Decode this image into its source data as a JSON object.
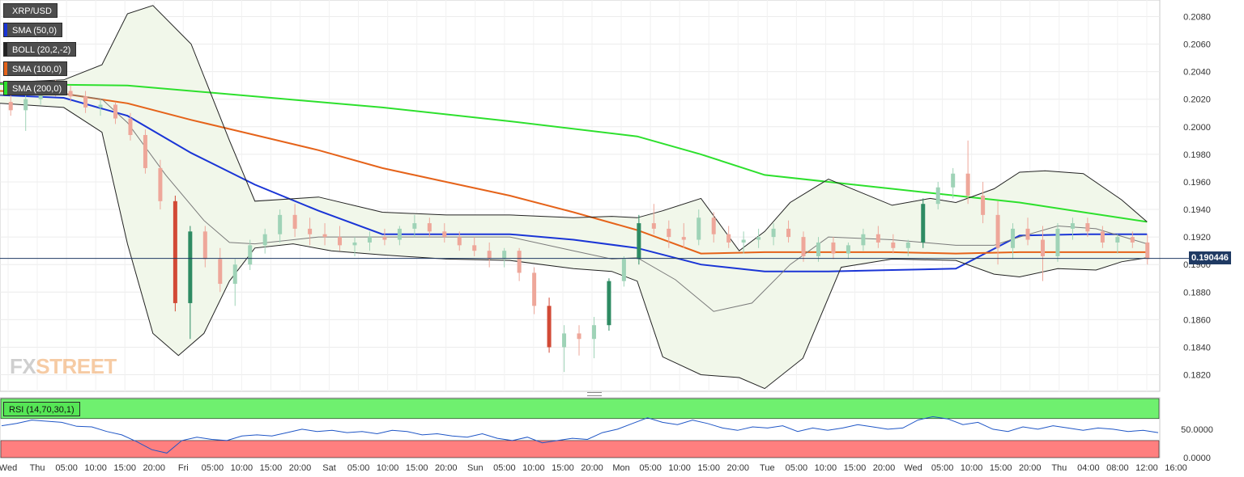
{
  "legend": [
    {
      "label": "XRP/USD",
      "color": "#4d4d4d"
    },
    {
      "label": "SMA (50,0)",
      "color": "#1a35d6"
    },
    {
      "label": "BOLL (20,2,-2)",
      "color": "#222222"
    },
    {
      "label": "SMA (100,0)",
      "color": "#e5631a"
    },
    {
      "label": "SMA (200,0)",
      "color": "#2de02d"
    }
  ],
  "current_price_label": "0.190446",
  "watermark": {
    "part1": "FX",
    "part2": "STREET"
  },
  "rsi_label": "RSI (14,70,30,1)",
  "colors": {
    "up": "#2e8b63",
    "up_light": "#9fd3b7",
    "down": "#d24a36",
    "down_light": "#eea79a",
    "rsi_line": "#1f56c6",
    "rsi_overbought": "#6ff06f",
    "rsi_oversold": "#ff7f7f"
  },
  "chart_data": [
    {
      "type": "candlestick",
      "title": "XRP/USD",
      "ylim": [
        0.1808,
        0.2092
      ],
      "y_ticks": [
        "0.2080",
        "0.2060",
        "0.2040",
        "0.2020",
        "0.2000",
        "0.1980",
        "0.1960",
        "0.1940",
        "0.1920",
        "0.1900",
        "0.1880",
        "0.1860",
        "0.1840",
        "0.1820"
      ],
      "x_labels": [
        "Wed",
        "Thu",
        "05:00",
        "10:00",
        "15:00",
        "20:00",
        "Fri",
        "05:00",
        "10:00",
        "15:00",
        "20:00",
        "Sat",
        "05:00",
        "10:00",
        "15:00",
        "20:00",
        "Sun",
        "05:00",
        "10:00",
        "15:00",
        "20:00",
        "Mon",
        "05:00",
        "10:00",
        "15:00",
        "20:00",
        "Tue",
        "05:00",
        "10:00",
        "15:00",
        "20:00",
        "Wed",
        "05:00",
        "10:00",
        "15:00",
        "20:00",
        "Thu",
        "04:00",
        "08:00",
        "12:00",
        "16:00"
      ],
      "current_price": 0.190446,
      "series": [
        {
          "name": "SMA (50,0)",
          "color": "#1a35d6",
          "x": [
            0,
            0.5,
            1,
            1.5,
            2,
            2.5,
            3,
            3.5,
            4,
            4.5,
            5,
            5.5,
            6,
            6.5,
            7,
            7.5,
            8,
            8.5,
            9
          ],
          "values": [
            0.2023,
            0.2021,
            0.2008,
            0.1981,
            0.1958,
            0.1939,
            0.1922,
            0.1922,
            0.1922,
            0.1918,
            0.1912,
            0.19,
            0.1895,
            0.1895,
            0.1896,
            0.1897,
            0.1921,
            0.1922,
            0.1922
          ]
        },
        {
          "name": "SMA (100,0)",
          "color": "#e5631a",
          "x": [
            0,
            0.5,
            1,
            1.5,
            2,
            2.5,
            3,
            3.5,
            4,
            4.5,
            5,
            5.5,
            6,
            6.5,
            7,
            7.5,
            8,
            8.5,
            9
          ],
          "values": [
            0.2026,
            0.2024,
            0.2017,
            0.2005,
            0.1994,
            0.1983,
            0.197,
            0.196,
            0.195,
            0.1938,
            0.1925,
            0.1908,
            0.1909,
            0.1909,
            0.1909,
            0.1908,
            0.1909,
            0.1909,
            0.1909
          ]
        },
        {
          "name": "SMA (200,0)",
          "color": "#2de02d",
          "x": [
            0,
            1,
            2,
            3,
            4,
            5,
            5.5,
            6,
            7,
            8,
            8.5,
            9
          ],
          "values": [
            0.2031,
            0.203,
            0.2022,
            0.2014,
            0.2004,
            0.1993,
            0.198,
            0.1965,
            0.1955,
            0.1945,
            0.1938,
            0.1931
          ]
        },
        {
          "name": "BOLL (20,2,-2)",
          "band": "upper",
          "color": "#222222",
          "x": [
            0,
            0.5,
            0.8,
            1.0,
            1.2,
            1.5,
            1.8,
            2.0,
            2.5,
            3.0,
            3.5,
            4.0,
            4.5,
            4.8,
            5.0,
            5.2,
            5.5,
            5.8,
            6.0,
            6.2,
            6.5,
            7.0,
            7.3,
            7.5,
            7.8,
            8.0,
            8.2,
            8.5,
            8.8,
            9.0
          ],
          "values": [
            0.2032,
            0.2034,
            0.2045,
            0.2082,
            0.2088,
            0.206,
            0.199,
            0.1946,
            0.1949,
            0.1938,
            0.1936,
            0.1936,
            0.1934,
            0.1935,
            0.1934,
            0.1939,
            0.1948,
            0.191,
            0.1924,
            0.1945,
            0.1962,
            0.1943,
            0.1948,
            0.1945,
            0.1955,
            0.1967,
            0.1968,
            0.1966,
            0.1947,
            0.1931
          ]
        },
        {
          "name": "BOLL (20,2,-2)",
          "band": "middle",
          "color": "#7a7a7a",
          "x": [
            0,
            0.5,
            0.8,
            1.0,
            1.3,
            1.6,
            1.8,
            2.0,
            2.5,
            3.0,
            3.5,
            4.0,
            4.5,
            4.8,
            5.0,
            5.3,
            5.6,
            5.9,
            6.2,
            6.5,
            7.0,
            7.5,
            7.8,
            8.0,
            8.3,
            8.6,
            9.0
          ],
          "values": [
            0.2023,
            0.2024,
            0.202,
            0.2003,
            0.1965,
            0.1932,
            0.1916,
            0.1915,
            0.192,
            0.192,
            0.192,
            0.192,
            0.191,
            0.1904,
            0.1905,
            0.1889,
            0.1866,
            0.1872,
            0.19,
            0.192,
            0.1918,
            0.1914,
            0.1914,
            0.192,
            0.1928,
            0.1926,
            0.1915
          ]
        },
        {
          "name": "BOLL (20,2,-2)",
          "band": "lower",
          "color": "#222222",
          "x": [
            0,
            0.5,
            0.8,
            1.0,
            1.2,
            1.4,
            1.6,
            1.8,
            2.0,
            2.3,
            2.6,
            3.0,
            3.5,
            4.0,
            4.5,
            4.8,
            5.0,
            5.2,
            5.5,
            5.8,
            6.0,
            6.3,
            6.6,
            7.0,
            7.5,
            7.8,
            8.0,
            8.3,
            8.6,
            8.8,
            9.0
          ],
          "values": [
            0.2017,
            0.2014,
            0.1996,
            0.1915,
            0.185,
            0.1834,
            0.185,
            0.1888,
            0.1912,
            0.1915,
            0.191,
            0.1907,
            0.1904,
            0.1903,
            0.1897,
            0.1895,
            0.1888,
            0.1833,
            0.182,
            0.1818,
            0.181,
            0.1832,
            0.1898,
            0.1904,
            0.1903,
            0.1893,
            0.1891,
            0.1897,
            0.1896,
            0.1902,
            0.1905
          ]
        }
      ],
      "candles_ohlc": [
        [
          0.2018,
          0.2024,
          0.2008,
          0.2012
        ],
        [
          0.2012,
          0.2024,
          0.1997,
          0.202
        ],
        [
          0.202,
          0.2032,
          0.2016,
          0.203
        ],
        [
          0.203,
          0.2034,
          0.2022,
          0.2026
        ],
        [
          0.2026,
          0.203,
          0.2018,
          0.2022
        ],
        [
          0.2022,
          0.2026,
          0.201,
          0.2014
        ],
        [
          0.2014,
          0.202,
          0.2008,
          0.2016
        ],
        [
          0.2016,
          0.2018,
          0.2002,
          0.2006
        ],
        [
          0.2006,
          0.201,
          0.199,
          0.1994
        ],
        [
          0.1994,
          0.1998,
          0.1966,
          0.197
        ],
        [
          0.197,
          0.1976,
          0.194,
          0.1946
        ],
        [
          0.1946,
          0.195,
          0.1866,
          0.1872
        ],
        [
          0.1872,
          0.1928,
          0.1846,
          0.1924
        ],
        [
          0.1924,
          0.1928,
          0.1898,
          0.1904
        ],
        [
          0.1904,
          0.1912,
          0.188,
          0.1886
        ],
        [
          0.1886,
          0.1904,
          0.187,
          0.19
        ],
        [
          0.19,
          0.1918,
          0.1896,
          0.1914
        ],
        [
          0.1914,
          0.1926,
          0.1908,
          0.1922
        ],
        [
          0.1922,
          0.194,
          0.1916,
          0.1936
        ],
        [
          0.1936,
          0.1944,
          0.192,
          0.1926
        ],
        [
          0.1926,
          0.1934,
          0.1914,
          0.1922
        ],
        [
          0.1922,
          0.193,
          0.1914,
          0.192
        ],
        [
          0.192,
          0.1928,
          0.191,
          0.1914
        ],
        [
          0.1914,
          0.192,
          0.1906,
          0.1916
        ],
        [
          0.1916,
          0.1924,
          0.191,
          0.192
        ],
        [
          0.192,
          0.1926,
          0.1914,
          0.1918
        ],
        [
          0.1918,
          0.1928,
          0.1914,
          0.1926
        ],
        [
          0.1926,
          0.1936,
          0.192,
          0.193
        ],
        [
          0.193,
          0.1934,
          0.192,
          0.1924
        ],
        [
          0.1924,
          0.193,
          0.1916,
          0.192
        ],
        [
          0.192,
          0.1924,
          0.191,
          0.1914
        ],
        [
          0.1914,
          0.192,
          0.1906,
          0.191
        ],
        [
          0.191,
          0.1916,
          0.1898,
          0.1904
        ],
        [
          0.1904,
          0.1912,
          0.1898,
          0.191
        ],
        [
          0.191,
          0.1912,
          0.1888,
          0.1894
        ],
        [
          0.1894,
          0.1898,
          0.1864,
          0.187
        ],
        [
          0.187,
          0.1876,
          0.1836,
          0.184
        ],
        [
          0.184,
          0.1856,
          0.1822,
          0.185
        ],
        [
          0.185,
          0.1856,
          0.1834,
          0.1846
        ],
        [
          0.1846,
          0.1862,
          0.1832,
          0.1856
        ],
        [
          0.1856,
          0.189,
          0.1852,
          0.1888
        ],
        [
          0.1888,
          0.1906,
          0.1884,
          0.1904
        ],
        [
          0.1904,
          0.1936,
          0.19,
          0.193
        ],
        [
          0.193,
          0.1944,
          0.1922,
          0.1926
        ],
        [
          0.1926,
          0.1932,
          0.1912,
          0.192
        ],
        [
          0.192,
          0.193,
          0.1912,
          0.1918
        ],
        [
          0.1918,
          0.194,
          0.1914,
          0.1934
        ],
        [
          0.1934,
          0.1938,
          0.1916,
          0.1922
        ],
        [
          0.1922,
          0.1928,
          0.1912,
          0.1916
        ],
        [
          0.1916,
          0.1924,
          0.1908,
          0.1918
        ],
        [
          0.1918,
          0.1926,
          0.1912,
          0.192
        ],
        [
          0.192,
          0.193,
          0.1914,
          0.1926
        ],
        [
          0.1926,
          0.1932,
          0.1916,
          0.192
        ],
        [
          0.192,
          0.1924,
          0.1902,
          0.1906
        ],
        [
          0.1906,
          0.192,
          0.1902,
          0.1916
        ],
        [
          0.1916,
          0.192,
          0.1904,
          0.1908
        ],
        [
          0.1908,
          0.1916,
          0.1904,
          0.1914
        ],
        [
          0.1914,
          0.1926,
          0.191,
          0.1922
        ],
        [
          0.1922,
          0.1928,
          0.1912,
          0.1916
        ],
        [
          0.1916,
          0.1922,
          0.1908,
          0.1912
        ],
        [
          0.1912,
          0.1918,
          0.1906,
          0.1916
        ],
        [
          0.1916,
          0.1948,
          0.1912,
          0.1944
        ],
        [
          0.1944,
          0.196,
          0.194,
          0.1956
        ],
        [
          0.1956,
          0.197,
          0.1948,
          0.1966
        ],
        [
          0.1966,
          0.199,
          0.1944,
          0.195
        ],
        [
          0.195,
          0.196,
          0.193,
          0.1936
        ],
        [
          0.1936,
          0.1946,
          0.19,
          0.1912
        ],
        [
          0.1912,
          0.193,
          0.1904,
          0.1926
        ],
        [
          0.1926,
          0.1934,
          0.1914,
          0.1918
        ],
        [
          0.1918,
          0.1928,
          0.1888,
          0.1906
        ],
        [
          0.1906,
          0.193,
          0.1902,
          0.1926
        ],
        [
          0.1926,
          0.1934,
          0.1918,
          0.193
        ],
        [
          0.193,
          0.1934,
          0.192,
          0.1924
        ],
        [
          0.1924,
          0.1928,
          0.1912,
          0.1916
        ],
        [
          0.1916,
          0.1922,
          0.1908,
          0.192
        ],
        [
          0.192,
          0.1924,
          0.1912,
          0.1916
        ],
        [
          0.1916,
          0.1922,
          0.19,
          0.1904
        ]
      ]
    },
    {
      "type": "line",
      "title": "RSI (14,70,30,1)",
      "ylim": [
        0,
        100
      ],
      "y_ticks": [
        "50.0000",
        "0.0000"
      ],
      "overbought": 70,
      "oversold": 30,
      "series": [
        {
          "name": "RSI (14,70,30,1)",
          "values": [
            56,
            60,
            66,
            64,
            62,
            55,
            54,
            46,
            40,
            28,
            14,
            8,
            30,
            36,
            32,
            30,
            38,
            40,
            38,
            44,
            50,
            46,
            48,
            44,
            46,
            42,
            48,
            46,
            40,
            42,
            38,
            36,
            42,
            34,
            30,
            36,
            26,
            30,
            34,
            32,
            44,
            50,
            60,
            70,
            62,
            58,
            66,
            60,
            52,
            48,
            54,
            52,
            56,
            46,
            52,
            48,
            52,
            58,
            54,
            50,
            52,
            66,
            72,
            68,
            58,
            62,
            50,
            46,
            54,
            50,
            56,
            52,
            48,
            52,
            50,
            46,
            48,
            44
          ]
        }
      ]
    }
  ]
}
